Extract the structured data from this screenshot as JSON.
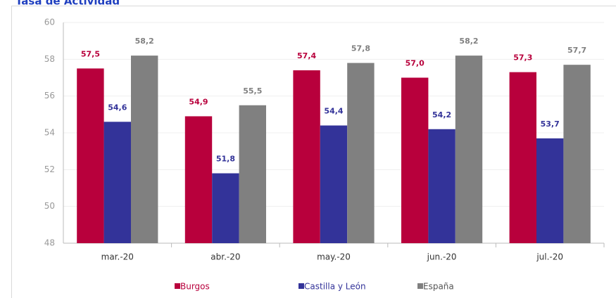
{
  "chart_data": {
    "type": "bar",
    "title": "Tasa de Actividad",
    "categories": [
      "mar.-20",
      "abr.-20",
      "may.-20",
      "jun.-20",
      "jul.-20"
    ],
    "series": [
      {
        "name": "Burgos",
        "color": "#b8003c",
        "values": [
          57.5,
          54.9,
          57.4,
          57.0,
          57.3
        ],
        "value_labels": [
          "57,5",
          "54,9",
          "57,4",
          "57,0",
          "57,3"
        ]
      },
      {
        "name": "Castilla y León",
        "color": "#333399",
        "values": [
          54.6,
          51.8,
          54.4,
          54.2,
          53.7
        ],
        "value_labels": [
          "54,6",
          "51,8",
          "54,4",
          "54,2",
          "53,7"
        ]
      },
      {
        "name": "España",
        "color": "#808080",
        "values": [
          58.2,
          55.5,
          57.8,
          58.2,
          57.7
        ],
        "value_labels": [
          "58,2",
          "55,5",
          "57,8",
          "58,2",
          "57,7"
        ]
      }
    ],
    "ylim": [
      48,
      60
    ],
    "yticks": [
      48,
      50,
      52,
      54,
      56,
      58,
      60
    ],
    "grid": true,
    "legend": "bottom"
  }
}
